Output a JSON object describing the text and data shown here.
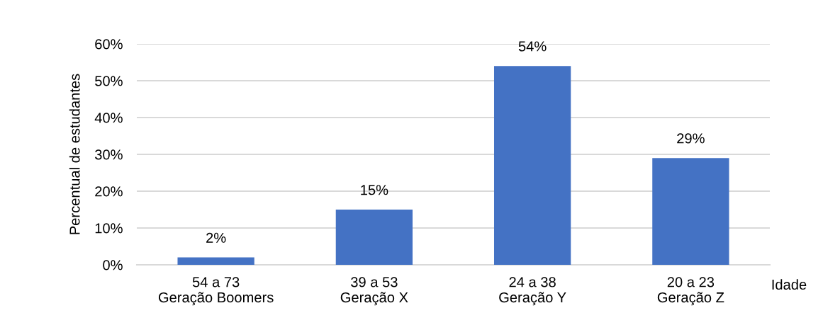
{
  "chart_data": {
    "type": "bar",
    "categories": [
      "54 a 73\nGeração Boomers",
      "39 a 53\nGeração X",
      "24 a 38\nGeração Y",
      "20 a 23\nGeração Z"
    ],
    "values": [
      2,
      15,
      54,
      29
    ],
    "color": "#4472c4",
    "value_labels": [
      "2%",
      "15%",
      "54%",
      "29%"
    ],
    "xlabel": "Idade",
    "ylabel": "Percentual de estudantes",
    "ylim": [
      0,
      60
    ],
    "yticks": [
      {
        "value": 0,
        "label": "0%"
      },
      {
        "value": 10,
        "label": "10%"
      },
      {
        "value": 20,
        "label": "20%"
      },
      {
        "value": 30,
        "label": "30%"
      },
      {
        "value": 40,
        "label": "40%"
      },
      {
        "value": 50,
        "label": "50%"
      },
      {
        "value": 60,
        "label": "60%"
      }
    ],
    "grid": "y",
    "legend": false
  }
}
